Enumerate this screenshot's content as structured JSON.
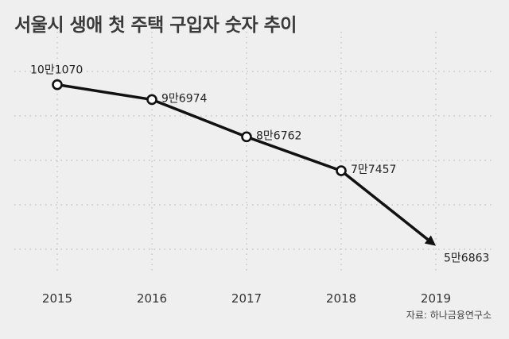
{
  "title": "서울시 생애 첫 주택 구입자 숫자 추이",
  "source": "자료: 하나금융연구소",
  "colors": {
    "background": "#efefef",
    "line": "#111111",
    "grid": "#bdbdbd",
    "text": "#222222"
  },
  "chart_data": {
    "type": "line",
    "title": "서울시 생애 첫 주택 구입자 숫자 추이",
    "xlabel": "",
    "ylabel": "",
    "categories": [
      "2015",
      "2016",
      "2017",
      "2018",
      "2019"
    ],
    "values": [
      101070,
      96974,
      86762,
      77457,
      56863
    ],
    "data_labels": [
      "10만1070",
      "9만6974",
      "8만6762",
      "7만7457",
      "5만6863"
    ],
    "ylim": [
      52000,
      106000
    ],
    "grid": "dotted, horizontal and vertical",
    "legend": "none",
    "last_point_marker": "arrow"
  }
}
